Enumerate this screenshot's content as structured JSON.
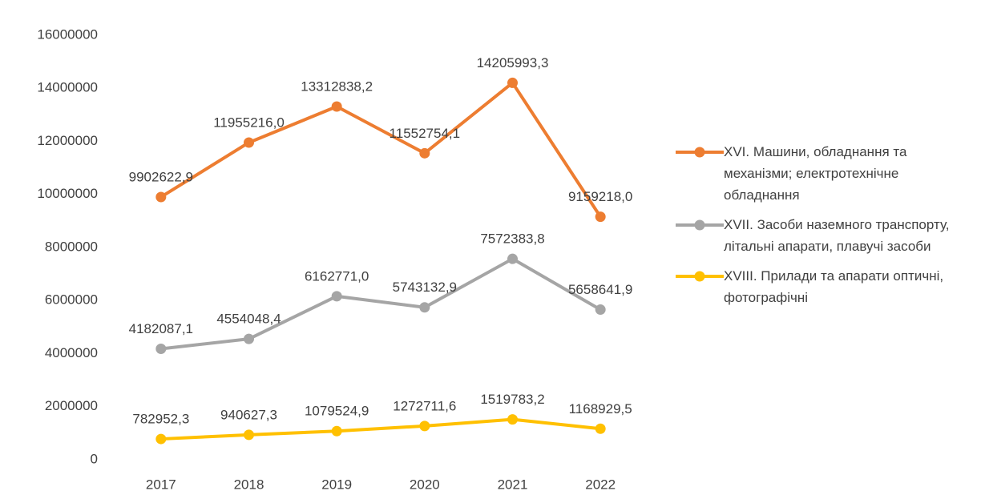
{
  "chart_data": {
    "type": "line",
    "categories": [
      "2017",
      "2018",
      "2019",
      "2020",
      "2021",
      "2022"
    ],
    "series": [
      {
        "name": "XVI. Машини, обладнання та механізми; електротехнічне обладнання",
        "color": "#ed7d31",
        "values": [
          9902622.9,
          11955216.0,
          13312838.2,
          11552754.1,
          14205993.3,
          9159218.0
        ],
        "value_labels": [
          "9902622,9",
          "11955216,0",
          "13312838,2",
          "11552754,1",
          "14205993,3",
          "9159218,0"
        ]
      },
      {
        "name": "XVII. Засоби наземного транспорту, літальні апарати, плавучі засоби",
        "color": "#a5a5a5",
        "values": [
          4182087.1,
          4554048.4,
          6162771.0,
          5743132.9,
          7572383.8,
          5658641.9
        ],
        "value_labels": [
          "4182087,1",
          "4554048,4",
          "6162771,0",
          "5743132,9",
          "7572383,8",
          "5658641,9"
        ]
      },
      {
        "name": "XVIII. Прилади та апарати оптичні, фотографічні",
        "color": "#ffc000",
        "values": [
          782952.3,
          940627.3,
          1079524.9,
          1272711.6,
          1519783.2,
          1168929.5
        ],
        "value_labels": [
          "782952,3",
          "940627,3",
          "1079524,9",
          "1272711,6",
          "1519783,2",
          "1168929,5"
        ]
      }
    ],
    "ylim": [
      0,
      16000000
    ],
    "yticks": [
      0,
      2000000,
      4000000,
      6000000,
      8000000,
      10000000,
      12000000,
      14000000,
      16000000
    ],
    "grid": false,
    "legend": "right"
  }
}
